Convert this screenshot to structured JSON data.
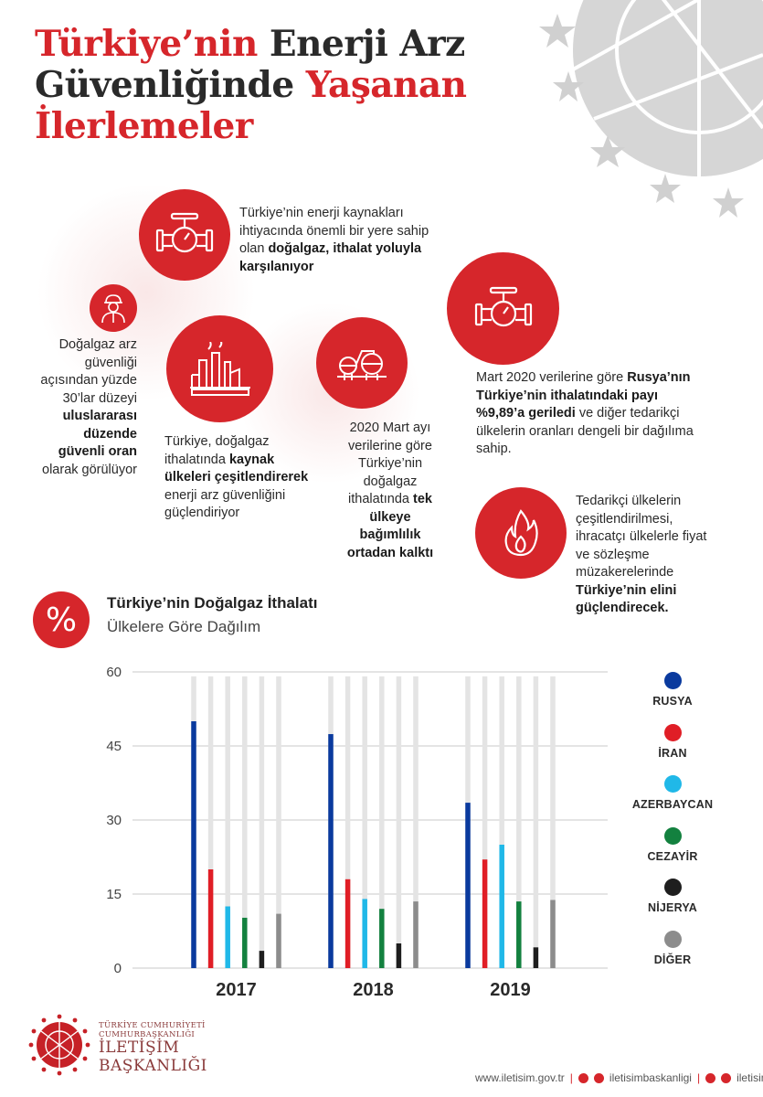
{
  "title": {
    "part1": "Türkiye’nin",
    "part2": "Enerji Arz",
    "part3": "Güvenliğinde",
    "part4": "Yaşanan",
    "part5": "İlerlemeler"
  },
  "colors": {
    "accent": "#d6262b",
    "dark": "#2a2a2a"
  },
  "info": {
    "import_text": {
      "t1": "Türkiye’nin enerji kaynakları ihtiyacında önemli bir yere sahip olan ",
      "b1": "doğalgaz, ithalat yoluyla karşılanıyor"
    },
    "security_text": {
      "t1": "Doğalgaz arz güvenliği açısından yüzde 30’lar düzeyi ",
      "b1": "uluslararası düzende güvenli oran",
      "t2": " olarak görülüyor"
    },
    "diversify_text": {
      "t1": "Türkiye, doğalgaz ithalatında ",
      "b1": "kaynak ülkeleri çeşitlendirerek",
      "t2": " enerji arz güvenliğini güçlendiriyor"
    },
    "dependency_text": {
      "t1": "2020 Mart ayı verilerine göre Türkiye’nin doğalgaz ithalatında ",
      "b1": "tek ülkeye bağımlılık ortadan kalktı"
    },
    "russia_text": {
      "t1": "Mart 2020 verilerine göre ",
      "b1": "Rusya’nın Türkiye’nin ithalatındaki payı %9,89’a geriledi",
      "t2": " ve diğer tedarikçi ülkelerin oranları dengeli bir dağılıma sahip."
    },
    "negotiation_text": {
      "t1": "Tedarikçi ülkelerin çeşitlendirilmesi, ihracatçı ülkelerle fiyat ve sözleşme müzakerelerinde ",
      "b1": "Türkiye’nin elini güçlendirecek."
    },
    "icons": [
      "valve-icon",
      "worker-icon",
      "factory-icon",
      "gas-tanks-icon",
      "valve-icon",
      "flame-icon"
    ]
  },
  "chart_header": {
    "percent_symbol": "%",
    "title": "Türkiye’nin Doğalgaz İthalatı",
    "subtitle": "Ülkelere Göre Dağılım"
  },
  "chart_data": {
    "type": "bar",
    "title": "Türkiye’nin Doğalgaz İthalatı",
    "subtitle": "Ülkelere Göre Dağılım",
    "categories": [
      "2017",
      "2018",
      "2019"
    ],
    "ylim": [
      0,
      60
    ],
    "yticks": [
      0,
      15,
      30,
      45,
      60
    ],
    "grid": true,
    "legend_position": "right",
    "series": [
      {
        "name": "RUSYA",
        "color": "#0a3a9e",
        "values": [
          50.0,
          47.4,
          33.5
        ]
      },
      {
        "name": "İRAN",
        "color": "#e01e26",
        "values": [
          20.0,
          18.0,
          22.0
        ]
      },
      {
        "name": "AZERBAYCAN",
        "color": "#20b8e8",
        "values": [
          12.5,
          14.0,
          25.0
        ]
      },
      {
        "name": "CEZAYİR",
        "color": "#13813f",
        "values": [
          10.2,
          12.0,
          13.5
        ]
      },
      {
        "name": "NİJERYA",
        "color": "#1e1e1e",
        "values": [
          3.5,
          5.0,
          4.2
        ]
      },
      {
        "name": "DİĞER",
        "color": "#8c8c8c",
        "values": [
          11.0,
          13.5,
          13.8
        ]
      }
    ]
  },
  "footer": {
    "logo_line1": "TÜRKİYE CUMHURİYETİ",
    "logo_line2": "CUMHURBAŞKANLIĞI",
    "logo_line3": "İLETİŞİM",
    "logo_line4": "BAŞKANLIĞI",
    "website": "www.iletisim.gov.tr",
    "social_handle1": "iletisimbaskanligi",
    "social_handle2": "iletisim"
  }
}
